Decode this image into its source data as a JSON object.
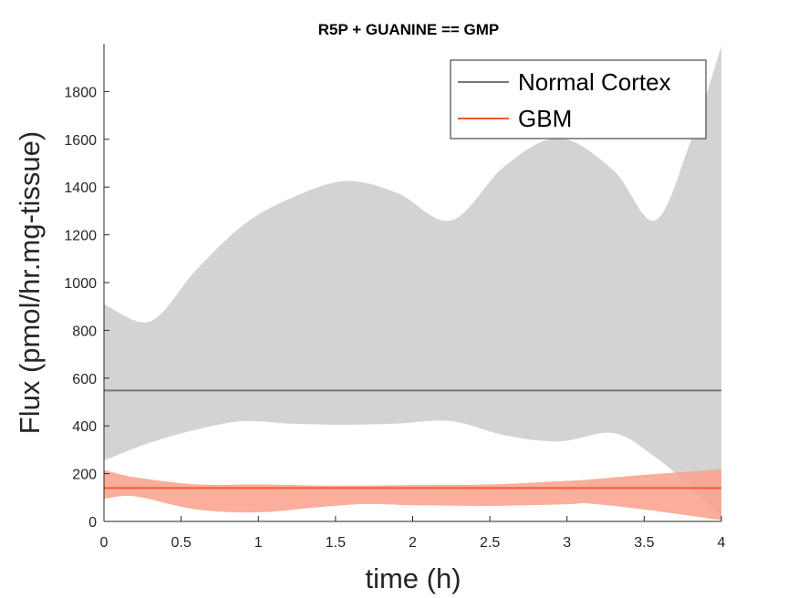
{
  "chart_data": {
    "type": "line",
    "title": "R5P + GUANINE == GMP",
    "xlabel": "time (h)",
    "ylabel": "Flux (pmol/hr.mg-tissue)",
    "xlim": [
      0,
      4
    ],
    "ylim": [
      0,
      2000
    ],
    "xticks": [
      0,
      0.5,
      1,
      1.5,
      2,
      2.5,
      3,
      3.5,
      4
    ],
    "xtick_labels": [
      "0",
      "0.5",
      "1",
      "1.5",
      "2",
      "2.5",
      "3",
      "3.5",
      "4"
    ],
    "yticks": [
      0,
      200,
      400,
      600,
      800,
      1000,
      1200,
      1400,
      1600,
      1800
    ],
    "ytick_labels": [
      "0",
      "200",
      "400",
      "600",
      "800",
      "1000",
      "1200",
      "1400",
      "1600",
      "1800"
    ],
    "grid": false,
    "legend_position": "top-right",
    "series": [
      {
        "name": "Normal Cortex",
        "color": "#6f7d77",
        "band_color": "#d3d3d3",
        "x": [
          0,
          4
        ],
        "values": [
          548,
          548
        ],
        "band_x": [
          0,
          0.3,
          0.6,
          0.9,
          1.2,
          1.56,
          1.9,
          2.25,
          2.6,
          2.95,
          3.3,
          3.57,
          3.8,
          4
        ],
        "band_upper": [
          910,
          838,
          1055,
          1240,
          1350,
          1425,
          1375,
          1260,
          1490,
          1605,
          1470,
          1260,
          1590,
          1990
        ],
        "band_lower": [
          255,
          330,
          385,
          420,
          410,
          405,
          410,
          420,
          360,
          335,
          370,
          270,
          145,
          20
        ]
      },
      {
        "name": "GBM",
        "color": "#f25a32",
        "band_color": "#f9a08a",
        "x": [
          0,
          4
        ],
        "values": [
          140,
          140
        ],
        "band_x": [
          0,
          0.2,
          0.6,
          1.0,
          1.4,
          1.7,
          2.0,
          2.5,
          3.0,
          3.14,
          3.5,
          4
        ],
        "band_upper": [
          215,
          185,
          155,
          155,
          150,
          150,
          152,
          155,
          170,
          175,
          195,
          218
        ],
        "band_lower": [
          95,
          105,
          50,
          38,
          60,
          73,
          68,
          65,
          72,
          75,
          50,
          5
        ]
      }
    ]
  }
}
